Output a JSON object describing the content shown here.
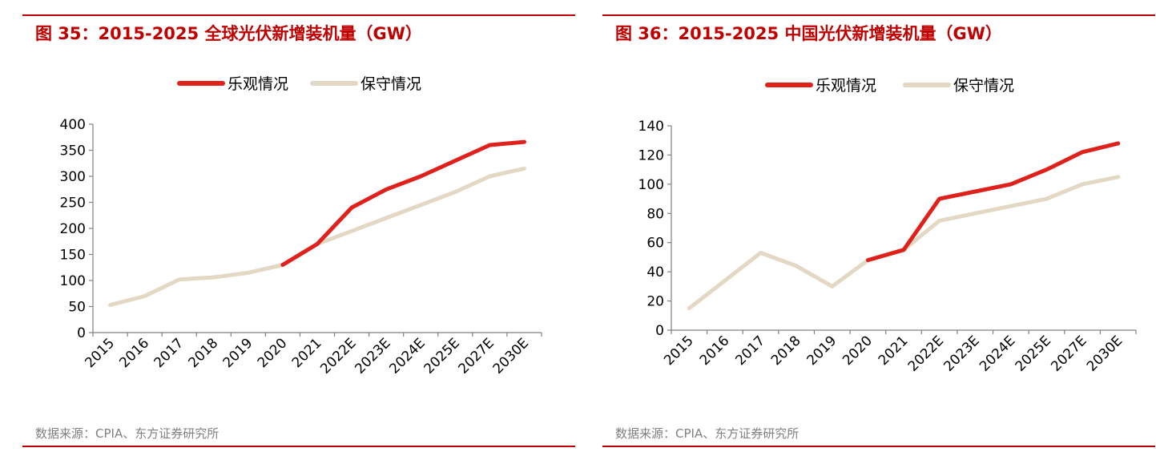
{
  "colors": {
    "optimistic": "#e0201b",
    "conservative": "#e3d8c3",
    "accent": "#c00000",
    "axis": "#808080"
  },
  "charts": [
    {
      "figure_title": "图 35：2015-2025 全球光伏新增装机量（GW）",
      "source": "数据来源：CPIA、东方证券研究所",
      "chart_data": {
        "type": "line",
        "title": "",
        "xlabel": "",
        "ylabel": "",
        "categories": [
          "2015",
          "2016",
          "2017",
          "2018",
          "2019",
          "2020",
          "2021",
          "2022E",
          "2023E",
          "2024E",
          "2025E",
          "2027E",
          "2030E"
        ],
        "ylim": [
          0,
          400
        ],
        "yticks": [
          "0",
          "50",
          "100",
          "150",
          "200",
          "250",
          "300",
          "350",
          "400"
        ],
        "grid": false,
        "legend_position": "top-center",
        "series": [
          {
            "name": "乐观情况",
            "color": "#e0201b",
            "values": [
              null,
              null,
              null,
              null,
              null,
              130,
              170,
              240,
              275,
              300,
              330,
              360,
              366
            ]
          },
          {
            "name": "保守情况",
            "color": "#e3d8c3",
            "values": [
              53,
              70,
              102,
              106,
              115,
              130,
              170,
              195,
              220,
              245,
              270,
              300,
              315
            ]
          }
        ]
      }
    },
    {
      "figure_title": "图 36：2015-2025 中国光伏新增装机量（GW）",
      "source": "数据来源：CPIA、东方证券研究所",
      "chart_data": {
        "type": "line",
        "title": "",
        "xlabel": "",
        "ylabel": "",
        "categories": [
          "2015",
          "2016",
          "2017",
          "2018",
          "2019",
          "2020",
          "2021",
          "2022E",
          "2023E",
          "2024E",
          "2025E",
          "2027E",
          "2030E"
        ],
        "ylim": [
          0,
          140
        ],
        "yticks": [
          "0",
          "20",
          "40",
          "60",
          "80",
          "100",
          "120",
          "140"
        ],
        "grid": false,
        "legend_position": "top-center",
        "series": [
          {
            "name": "乐观情况",
            "color": "#e0201b",
            "values": [
              null,
              null,
              null,
              null,
              null,
              48,
              55,
              90,
              95,
              100,
              110,
              122,
              128
            ]
          },
          {
            "name": "保守情况",
            "color": "#e3d8c3",
            "values": [
              15,
              34,
              53,
              44,
              30,
              48,
              55,
              75,
              80,
              85,
              90,
              100,
              105
            ]
          }
        ]
      }
    }
  ]
}
